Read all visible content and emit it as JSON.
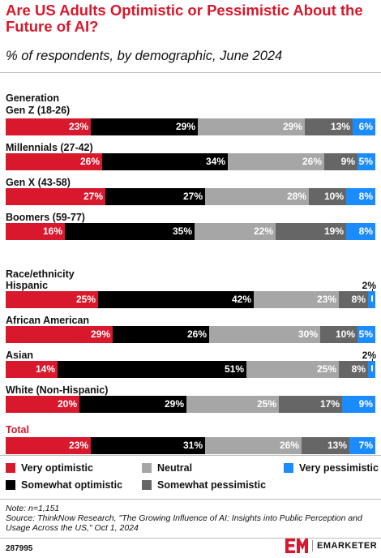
{
  "header": {
    "title": "Are US Adults Optimistic or Pessimistic About the Future of AI?",
    "subtitle": "% of respondents, by demographic, June 2024"
  },
  "chart_data": {
    "type": "bar",
    "orientation": "horizontal",
    "stacked": true,
    "normalized_percent": true,
    "groups": [
      {
        "name": "Generation",
        "categories": [
          "Gen Z (18-26)",
          "Millennials (27-42)",
          "Gen X (43-58)",
          "Boomers (59-77)"
        ]
      },
      {
        "name": "Race/ethnicity",
        "categories": [
          "Hispanic",
          "African American",
          "Asian",
          "White (Non-Hispanic)"
        ]
      },
      {
        "name": "",
        "categories": [
          "Total"
        ]
      }
    ],
    "categories": [
      "Gen Z (18-26)",
      "Millennials (27-42)",
      "Gen X (43-58)",
      "Boomers (59-77)",
      "Hispanic",
      "African American",
      "Asian",
      "White (Non-Hispanic)",
      "Total"
    ],
    "series": [
      {
        "name": "Very optimistic",
        "color": "#d8182c",
        "values": [
          23,
          26,
          27,
          16,
          25,
          29,
          14,
          20,
          23
        ]
      },
      {
        "name": "Somewhat optimistic",
        "color": "#000000",
        "values": [
          29,
          34,
          27,
          35,
          42,
          26,
          51,
          29,
          31
        ]
      },
      {
        "name": "Neutral",
        "color": "#a6a6a6",
        "values": [
          29,
          26,
          28,
          22,
          23,
          30,
          25,
          25,
          26
        ]
      },
      {
        "name": "Somewhat pessimistic",
        "color": "#666666",
        "values": [
          13,
          9,
          10,
          19,
          8,
          10,
          8,
          17,
          13
        ]
      },
      {
        "name": "Very pessimistic",
        "color": "#1a8cff",
        "values": [
          6,
          5,
          8,
          8,
          2,
          5,
          2,
          9,
          7
        ]
      }
    ],
    "value_suffix": "%",
    "legend": {
      "placement": "bottom",
      "items": [
        "Very optimistic",
        "Neutral",
        "Very pessimistic",
        "Somewhat optimistic",
        "Somewhat pessimistic"
      ]
    },
    "grid": false
  },
  "footer": {
    "note": "Note: n=1,151",
    "source": "Source: ThinkNow Research, \"The Growing Influence of AI: Insights into Public Perception and Usage Across the US,\" Oct 1, 2024",
    "chart_id": "287995",
    "brand": "EMARKETER"
  }
}
